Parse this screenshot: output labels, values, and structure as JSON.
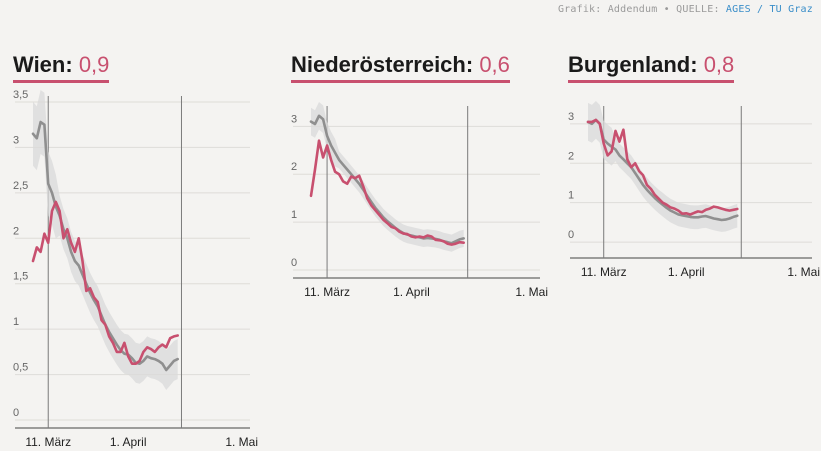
{
  "credit": {
    "prefix": "Grafik: Addendum • QUELLE:",
    "source": "AGES / TU Graz"
  },
  "colors": {
    "accent": "#c8506f",
    "gray": "#8f8f8f",
    "band": "#d9d9d9"
  },
  "chart_data": [
    {
      "type": "line",
      "title": "Wien",
      "value_label": "0,9",
      "yticks": [
        "0",
        "0,5",
        "1",
        "1,5",
        "2",
        "2,5",
        "3",
        "3,5"
      ],
      "ylim": [
        0,
        3.5
      ],
      "xticks": [
        "11. März",
        "1. April",
        "1. Mai"
      ],
      "x_days": [
        0,
        21,
        51
      ],
      "xlim": [
        -4,
        53
      ],
      "vlines": [
        0,
        35
      ],
      "series": [
        {
          "values": [
            [
              -4,
              3.15
            ],
            [
              -3,
              3.1
            ],
            [
              -2,
              3.28
            ],
            [
              -1,
              3.25
            ],
            [
              0,
              2.6
            ],
            [
              1,
              2.5
            ],
            [
              2,
              2.35
            ],
            [
              3,
              2.25
            ],
            [
              4,
              2.1
            ],
            [
              5,
              2.0
            ],
            [
              6,
              1.85
            ],
            [
              7,
              1.75
            ],
            [
              8,
              1.7
            ],
            [
              9,
              1.6
            ],
            [
              10,
              1.5
            ],
            [
              11,
              1.4
            ],
            [
              12,
              1.32
            ],
            [
              13,
              1.25
            ],
            [
              14,
              1.15
            ],
            [
              15,
              1.05
            ],
            [
              16,
              0.97
            ],
            [
              17,
              0.9
            ],
            [
              18,
              0.83
            ],
            [
              19,
              0.77
            ],
            [
              20,
              0.73
            ],
            [
              21,
              0.72
            ],
            [
              22,
              0.68
            ],
            [
              23,
              0.63
            ],
            [
              24,
              0.62
            ],
            [
              25,
              0.65
            ],
            [
              26,
              0.7
            ],
            [
              27,
              0.68
            ],
            [
              28,
              0.67
            ],
            [
              29,
              0.65
            ],
            [
              30,
              0.62
            ],
            [
              31,
              0.55
            ],
            [
              32,
              0.6
            ],
            [
              33,
              0.65
            ],
            [
              34,
              0.67
            ]
          ],
          "band": 0.22
        },
        {
          "values": [
            [
              -4,
              1.75
            ],
            [
              -3,
              1.9
            ],
            [
              -2,
              1.85
            ],
            [
              -1,
              2.05
            ],
            [
              0,
              1.95
            ],
            [
              1,
              2.3
            ],
            [
              2,
              2.4
            ],
            [
              3,
              2.3
            ],
            [
              4,
              2.0
            ],
            [
              5,
              2.1
            ],
            [
              6,
              1.95
            ],
            [
              7,
              1.85
            ],
            [
              8,
              2.0
            ],
            [
              9,
              1.75
            ],
            [
              10,
              1.42
            ],
            [
              11,
              1.45
            ],
            [
              12,
              1.35
            ],
            [
              13,
              1.3
            ],
            [
              14,
              1.1
            ],
            [
              15,
              1.05
            ],
            [
              16,
              0.92
            ],
            [
              17,
              0.85
            ],
            [
              18,
              0.75
            ],
            [
              19,
              0.75
            ],
            [
              20,
              0.85
            ],
            [
              21,
              0.7
            ],
            [
              22,
              0.62
            ],
            [
              23,
              0.62
            ],
            [
              24,
              0.65
            ],
            [
              25,
              0.75
            ],
            [
              26,
              0.8
            ],
            [
              27,
              0.78
            ],
            [
              28,
              0.75
            ],
            [
              29,
              0.8
            ],
            [
              30,
              0.83
            ],
            [
              31,
              0.8
            ],
            [
              32,
              0.9
            ],
            [
              33,
              0.92
            ],
            [
              34,
              0.93
            ]
          ],
          "accent": true
        }
      ]
    },
    {
      "type": "line",
      "title": "Niederösterreich",
      "value_label": "0,6",
      "yticks": [
        "0",
        "1",
        "2",
        "3"
      ],
      "ylim": [
        0,
        3.3
      ],
      "xticks": [
        "11. März",
        "1. April",
        "1. Mai"
      ],
      "x_days": [
        0,
        21,
        51
      ],
      "xlim": [
        -4,
        53
      ],
      "vlines": [
        0,
        35
      ],
      "series": [
        {
          "values": [
            [
              -4,
              3.1
            ],
            [
              -3,
              3.05
            ],
            [
              -2,
              3.22
            ],
            [
              -1,
              3.15
            ],
            [
              0,
              2.8
            ],
            [
              1,
              2.6
            ],
            [
              2,
              2.45
            ],
            [
              3,
              2.3
            ],
            [
              4,
              2.2
            ],
            [
              5,
              2.1
            ],
            [
              6,
              2.0
            ],
            [
              7,
              1.9
            ],
            [
              8,
              1.8
            ],
            [
              9,
              1.68
            ],
            [
              10,
              1.55
            ],
            [
              11,
              1.42
            ],
            [
              12,
              1.3
            ],
            [
              13,
              1.2
            ],
            [
              14,
              1.1
            ],
            [
              15,
              1.02
            ],
            [
              16,
              0.95
            ],
            [
              17,
              0.88
            ],
            [
              18,
              0.82
            ],
            [
              19,
              0.77
            ],
            [
              20,
              0.74
            ],
            [
              21,
              0.72
            ],
            [
              22,
              0.7
            ],
            [
              23,
              0.68
            ],
            [
              24,
              0.66
            ],
            [
              25,
              0.67
            ],
            [
              26,
              0.66
            ],
            [
              27,
              0.65
            ],
            [
              28,
              0.63
            ],
            [
              29,
              0.6
            ],
            [
              30,
              0.58
            ],
            [
              31,
              0.56
            ],
            [
              32,
              0.6
            ],
            [
              33,
              0.64
            ],
            [
              34,
              0.66
            ]
          ],
          "band": 0.18
        },
        {
          "values": [
            [
              -4,
              1.55
            ],
            [
              -3,
              2.1
            ],
            [
              -2,
              2.7
            ],
            [
              -1,
              2.35
            ],
            [
              0,
              2.6
            ],
            [
              1,
              2.3
            ],
            [
              2,
              2.05
            ],
            [
              3,
              2.0
            ],
            [
              4,
              1.85
            ],
            [
              5,
              1.8
            ],
            [
              6,
              1.95
            ],
            [
              7,
              1.92
            ],
            [
              8,
              1.97
            ],
            [
              9,
              1.75
            ],
            [
              10,
              1.5
            ],
            [
              11,
              1.35
            ],
            [
              12,
              1.25
            ],
            [
              13,
              1.15
            ],
            [
              14,
              1.05
            ],
            [
              15,
              0.98
            ],
            [
              16,
              0.9
            ],
            [
              17,
              0.87
            ],
            [
              18,
              0.8
            ],
            [
              19,
              0.76
            ],
            [
              20,
              0.75
            ],
            [
              21,
              0.7
            ],
            [
              22,
              0.68
            ],
            [
              23,
              0.7
            ],
            [
              24,
              0.68
            ],
            [
              25,
              0.72
            ],
            [
              26,
              0.7
            ],
            [
              27,
              0.63
            ],
            [
              28,
              0.62
            ],
            [
              29,
              0.6
            ],
            [
              30,
              0.55
            ],
            [
              31,
              0.53
            ],
            [
              32,
              0.55
            ],
            [
              33,
              0.58
            ],
            [
              34,
              0.57
            ]
          ],
          "accent": true
        }
      ]
    },
    {
      "type": "line",
      "title": "Burgenland",
      "value_label": "0,8",
      "yticks": [
        "0",
        "1",
        "2",
        "3"
      ],
      "ylim": [
        -0.2,
        3.3
      ],
      "xticks": [
        "11. März",
        "1. April",
        "1. Mai"
      ],
      "x_days": [
        0,
        21,
        51
      ],
      "xlim": [
        -4,
        53
      ],
      "vlines": [
        0,
        35
      ],
      "series": [
        {
          "values": [
            [
              -4,
              3.05
            ],
            [
              -3,
              3.0
            ],
            [
              -2,
              3.1
            ],
            [
              -1,
              3.0
            ],
            [
              0,
              2.6
            ],
            [
              1,
              2.5
            ],
            [
              2,
              2.42
            ],
            [
              3,
              2.35
            ],
            [
              4,
              2.2
            ],
            [
              5,
              2.1
            ],
            [
              6,
              2.0
            ],
            [
              7,
              1.9
            ],
            [
              8,
              1.75
            ],
            [
              9,
              1.6
            ],
            [
              10,
              1.45
            ],
            [
              11,
              1.33
            ],
            [
              12,
              1.22
            ],
            [
              13,
              1.12
            ],
            [
              14,
              1.03
            ],
            [
              15,
              0.95
            ],
            [
              16,
              0.87
            ],
            [
              17,
              0.8
            ],
            [
              18,
              0.75
            ],
            [
              19,
              0.7
            ],
            [
              20,
              0.68
            ],
            [
              21,
              0.66
            ],
            [
              22,
              0.64
            ],
            [
              23,
              0.63
            ],
            [
              24,
              0.63
            ],
            [
              25,
              0.65
            ],
            [
              26,
              0.66
            ],
            [
              27,
              0.63
            ],
            [
              28,
              0.6
            ],
            [
              29,
              0.58
            ],
            [
              30,
              0.56
            ],
            [
              31,
              0.57
            ],
            [
              32,
              0.6
            ],
            [
              33,
              0.64
            ],
            [
              34,
              0.67
            ]
          ],
          "band": 0.3
        },
        {
          "values": [
            [
              -4,
              3.05
            ],
            [
              -3,
              3.05
            ],
            [
              -2,
              3.1
            ],
            [
              -1,
              3.0
            ],
            [
              0,
              2.5
            ],
            [
              1,
              2.2
            ],
            [
              2,
              2.3
            ],
            [
              3,
              2.82
            ],
            [
              4,
              2.55
            ],
            [
              5,
              2.85
            ],
            [
              6,
              2.1
            ],
            [
              7,
              1.9
            ],
            [
              8,
              2.0
            ],
            [
              9,
              1.8
            ],
            [
              10,
              1.7
            ],
            [
              11,
              1.45
            ],
            [
              12,
              1.35
            ],
            [
              13,
              1.2
            ],
            [
              14,
              1.1
            ],
            [
              15,
              1.0
            ],
            [
              16,
              0.95
            ],
            [
              17,
              0.88
            ],
            [
              18,
              0.85
            ],
            [
              19,
              0.8
            ],
            [
              20,
              0.72
            ],
            [
              21,
              0.73
            ],
            [
              22,
              0.7
            ],
            [
              23,
              0.74
            ],
            [
              24,
              0.78
            ],
            [
              25,
              0.76
            ],
            [
              26,
              0.82
            ],
            [
              27,
              0.85
            ],
            [
              28,
              0.9
            ],
            [
              29,
              0.88
            ],
            [
              30,
              0.85
            ],
            [
              31,
              0.82
            ],
            [
              32,
              0.8
            ],
            [
              33,
              0.82
            ],
            [
              34,
              0.84
            ]
          ],
          "accent": true
        }
      ]
    }
  ]
}
